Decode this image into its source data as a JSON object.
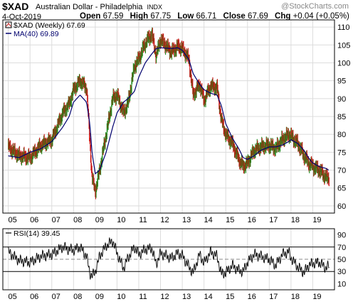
{
  "header": {
    "symbol": "$XAD",
    "name": "Australian Dollar - Philadelphia",
    "exchange": "INDX",
    "credit": "@StockCharts.com",
    "date": "4-Oct-2019",
    "open_label": "Open",
    "open": "67.59",
    "high_label": "High",
    "high": "67.75",
    "low_label": "Low",
    "low": "66.71",
    "close_label": "Close",
    "close": "67.69",
    "chg_label": "Chg",
    "chg": "+0.04 (+0.05%)"
  },
  "colors": {
    "up": "#1a8a1a",
    "down": "#c81010",
    "ma": "#00006e",
    "grid": "#dcdcdc",
    "frame": "#000000"
  },
  "chart_data": [
    {
      "type": "line",
      "title": "$XAD Australian Dollar - Philadelphia INDX",
      "legend": "top-left",
      "grid": true,
      "ylim": [
        58,
        112
      ],
      "y_ticks": [
        60,
        65,
        70,
        75,
        80,
        85,
        90,
        95,
        100,
        105,
        110
      ],
      "x_tick_labels": [
        "05",
        "06",
        "07",
        "08",
        "09",
        "10",
        "11",
        "12",
        "13",
        "14",
        "15",
        "16",
        "17",
        "18",
        "19"
      ],
      "x": [
        2005.0,
        2005.5,
        2006.0,
        2006.5,
        2007.0,
        2007.5,
        2007.8,
        2008.0,
        2008.3,
        2008.6,
        2008.75,
        2008.85,
        2009.0,
        2009.2,
        2009.5,
        2009.8,
        2010.0,
        2010.3,
        2010.5,
        2010.8,
        2011.0,
        2011.3,
        2011.6,
        2011.8,
        2012.0,
        2012.5,
        2012.8,
        2013.0,
        2013.3,
        2013.5,
        2013.8,
        2014.0,
        2014.3,
        2014.6,
        2014.8,
        2015.0,
        2015.3,
        2015.6,
        2015.8,
        2016.0,
        2016.3,
        2016.6,
        2017.0,
        2017.3,
        2017.6,
        2017.9,
        2018.0,
        2018.3,
        2018.6,
        2018.8,
        2019.0,
        2019.3,
        2019.6,
        2019.76
      ],
      "series": [
        {
          "name": "$XAD (Weekly) 67.69",
          "values": [
            76.5,
            74.0,
            73.5,
            77.0,
            78.5,
            86.0,
            88.5,
            92.5,
            95.0,
            93.0,
            78.0,
            68.0,
            64.0,
            70.0,
            80.0,
            90.0,
            91.0,
            86.0,
            88.5,
            99.0,
            101.0,
            105.5,
            108.0,
            102.0,
            106.5,
            103.0,
            104.5,
            104.0,
            101.0,
            91.0,
            94.0,
            89.5,
            93.5,
            93.0,
            84.0,
            80.0,
            77.5,
            73.0,
            71.0,
            72.0,
            75.5,
            76.5,
            77.0,
            76.0,
            78.5,
            80.0,
            79.5,
            77.5,
            74.0,
            72.0,
            71.0,
            70.0,
            68.0,
            67.69
          ]
        },
        {
          "name": "MA(40) 69.89",
          "values": [
            74.0,
            73.5,
            75.0,
            76.0,
            78.0,
            82.0,
            85.0,
            89.0,
            91.0,
            89.0,
            83.0,
            75.0,
            69.0,
            70.0,
            75.0,
            82.0,
            86.0,
            89.0,
            90.0,
            92.0,
            96.0,
            100.0,
            102.5,
            104.0,
            104.2,
            104.0,
            104.2,
            103.5,
            101.0,
            97.0,
            94.0,
            92.5,
            91.5,
            91.0,
            88.0,
            83.0,
            79.0,
            76.0,
            73.5,
            73.0,
            74.0,
            75.5,
            76.5,
            76.5,
            77.0,
            78.0,
            78.5,
            77.5,
            75.5,
            73.5,
            72.0,
            71.0,
            70.5,
            69.89
          ]
        }
      ]
    },
    {
      "type": "line",
      "legend": "top-left",
      "ylim": [
        0,
        100
      ],
      "y_ticks": [
        10,
        30,
        50,
        70,
        90
      ],
      "reference_lines": [
        30,
        70
      ],
      "x_tick_labels": [
        "05",
        "06",
        "07",
        "08",
        "09",
        "10",
        "11",
        "12",
        "13",
        "14",
        "15",
        "16",
        "17",
        "18",
        "19"
      ],
      "x": [
        2005.0,
        2005.5,
        2006.0,
        2006.5,
        2007.0,
        2007.5,
        2007.8,
        2008.0,
        2008.3,
        2008.6,
        2008.75,
        2008.85,
        2009.0,
        2009.2,
        2009.5,
        2009.8,
        2010.0,
        2010.3,
        2010.5,
        2010.8,
        2011.0,
        2011.3,
        2011.6,
        2011.8,
        2012.0,
        2012.5,
        2012.8,
        2013.0,
        2013.3,
        2013.5,
        2013.8,
        2014.0,
        2014.3,
        2014.6,
        2014.8,
        2015.0,
        2015.3,
        2015.6,
        2015.8,
        2016.0,
        2016.3,
        2016.6,
        2017.0,
        2017.3,
        2017.6,
        2017.9,
        2018.0,
        2018.3,
        2018.6,
        2018.8,
        2019.0,
        2019.3,
        2019.6,
        2019.76
      ],
      "series": [
        {
          "name": "RSI(14) 39.45",
          "values": [
            62,
            48,
            45,
            55,
            58,
            70,
            66,
            65,
            70,
            55,
            28,
            22,
            30,
            55,
            72,
            80,
            60,
            35,
            52,
            70,
            58,
            66,
            68,
            42,
            60,
            52,
            60,
            56,
            38,
            28,
            58,
            44,
            62,
            55,
            26,
            28,
            40,
            32,
            30,
            45,
            58,
            55,
            50,
            40,
            58,
            62,
            52,
            38,
            28,
            40,
            43,
            45,
            36,
            39.45
          ]
        }
      ]
    }
  ]
}
